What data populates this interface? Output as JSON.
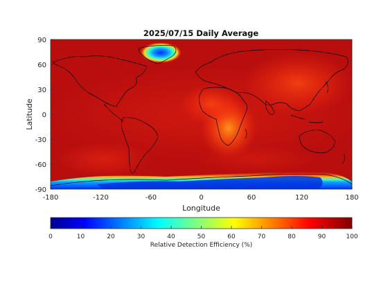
{
  "map": {
    "title": "2025/07/15 Daily Average",
    "xlabel": "Longitude",
    "ylabel": "Latitude",
    "xticks": [
      "-180",
      "-120",
      "-60",
      "0",
      "60",
      "120",
      "180"
    ],
    "yticks": [
      "90",
      "60",
      "30",
      "0",
      "-30",
      "-60",
      "-90"
    ],
    "xlim": [
      -180,
      180
    ],
    "ylim": [
      -90,
      90
    ]
  },
  "colorbar": {
    "label": "Relative Detection Efficiency (%)",
    "ticks": [
      "0",
      "10",
      "20",
      "30",
      "40",
      "50",
      "60",
      "70",
      "80",
      "90",
      "100"
    ],
    "range": [
      0,
      100
    ],
    "colormap": "jet",
    "stops": [
      "#00008f",
      "#0000ff",
      "#00ffff",
      "#ffff00",
      "#ff0000",
      "#800000"
    ]
  },
  "colors": {
    "background_field": "#b80e0e",
    "coastline": "#000000"
  }
}
